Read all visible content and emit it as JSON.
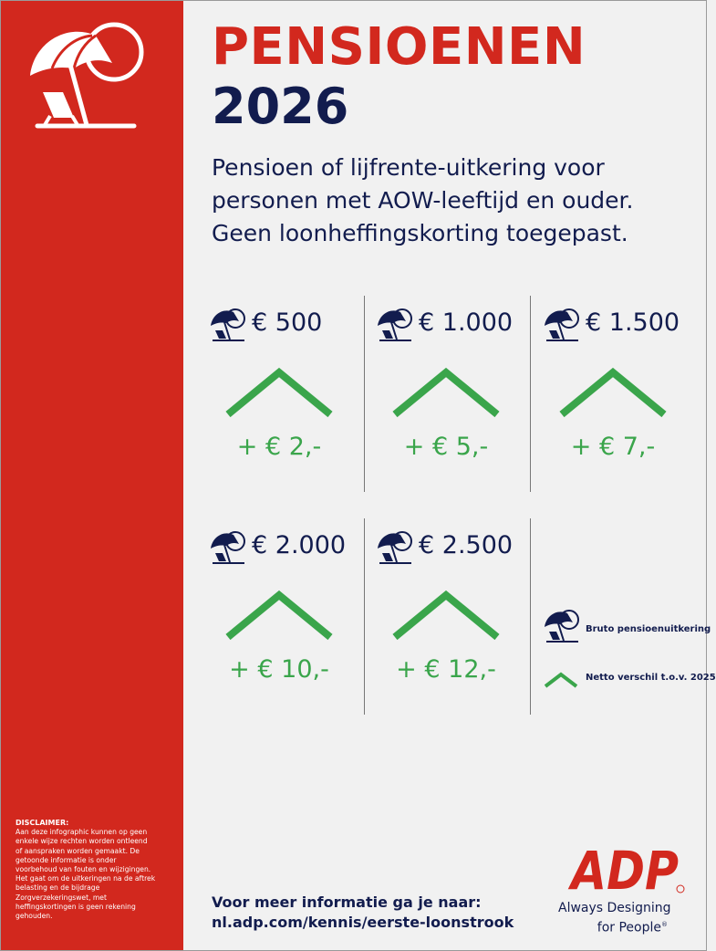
{
  "header": {
    "title": "PENSIOENEN",
    "year": "2026",
    "subtitle_lines": [
      "Pensioen of lijfrente-uitkering voor",
      "personen met AOW-leeftijd en ouder.",
      "Geen loonheffingskorting toegepast."
    ]
  },
  "cards": [
    {
      "amount": "€ 500",
      "delta": "+ € 2,-"
    },
    {
      "amount": "€ 1.000",
      "delta": "+ € 5,-"
    },
    {
      "amount": "€ 1.500",
      "delta": "+ € 7,-"
    },
    {
      "amount": "€ 2.000",
      "delta": "+ € 10,-"
    },
    {
      "amount": "€ 2.500",
      "delta": "+ € 12,-"
    }
  ],
  "legend": {
    "gross_label": "Bruto pensioenuitkering",
    "net_label": "Netto verschil t.o.v. 2025"
  },
  "disclaimer": {
    "title": "DISCLAIMER:",
    "lines": [
      "Aan deze infographic kunnen op geen",
      "enkele wijze rechten worden ontleend",
      "of aanspraken worden gemaakt. De",
      "getoonde informatie is onder",
      "voorbehoud van fouten en wijzigingen.",
      "Het gaat om de uitkeringen na de aftrek",
      "belasting en de bijdrage",
      "Zorgverzekeringswet, met",
      "heffingskortingen is geen rekening",
      "gehouden."
    ]
  },
  "footer": {
    "cta_line1": "Voor meer informatie ga je naar:",
    "cta_line2": "nl.adp.com/kennis/eerste-loonstrook",
    "brand": "ADP",
    "tagline_line1": "Always Designing",
    "tagline_line2": "for People"
  },
  "colors": {
    "brand_red": "#d2281e",
    "navy": "#121c4e",
    "green": "#3aa54b",
    "background": "#f1f1f1"
  },
  "icons": {
    "gross": "beach-umbrella-chair-icon",
    "net": "chevron-up-icon"
  }
}
